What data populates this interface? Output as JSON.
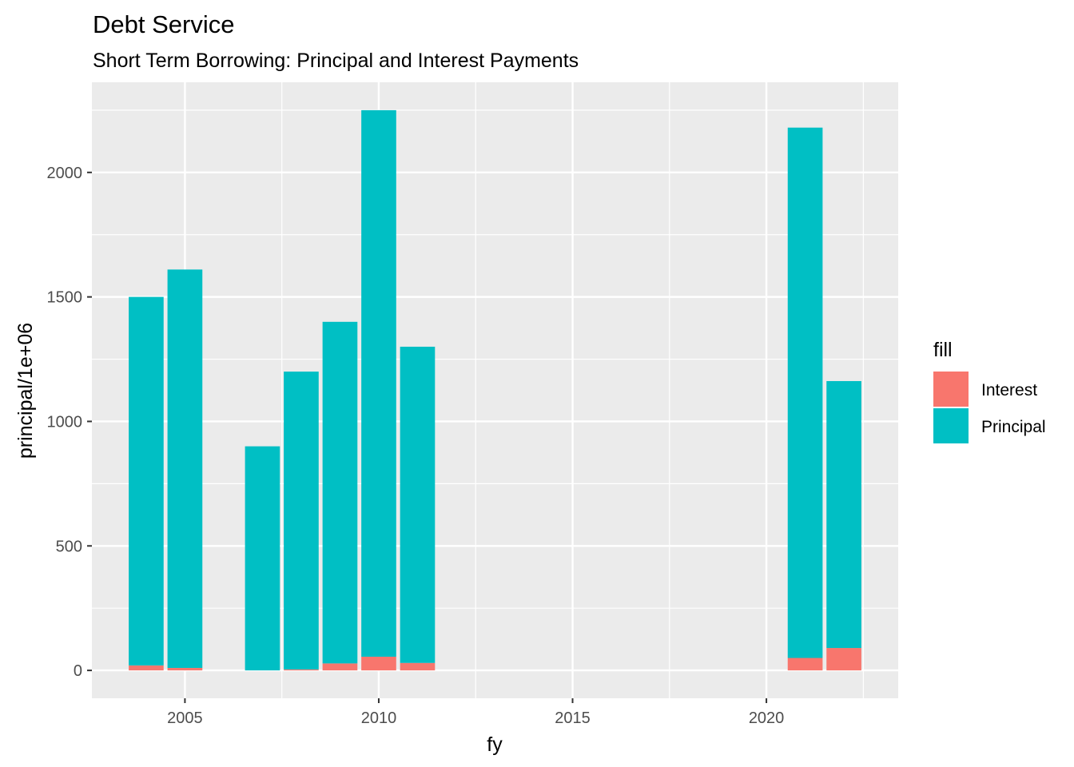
{
  "chart_data": {
    "type": "bar",
    "stacked": true,
    "title": "Debt Service",
    "subtitle": "Short Term Borrowing: Principal and Interest Payments",
    "xlabel": "fy",
    "ylabel": "principal/1e+06",
    "xlim": [
      2002.6,
      2023.4
    ],
    "ylim": [
      -112,
      2362
    ],
    "x_ticks": [
      2005,
      2010,
      2015,
      2020
    ],
    "x_tick_labels": [
      "2005",
      "2010",
      "2015",
      "2020"
    ],
    "y_ticks": [
      0,
      500,
      1000,
      1500,
      2000
    ],
    "y_tick_labels": [
      "0",
      "500",
      "1000",
      "1500",
      "2000"
    ],
    "grid": true,
    "legend": {
      "title": "fill",
      "position": "right"
    },
    "x": [
      2004,
      2005,
      2007,
      2008,
      2009,
      2010,
      2011,
      2021,
      2022
    ],
    "series": [
      {
        "name": "Interest",
        "color": "#F8766D",
        "values": [
          20,
          10,
          0,
          4,
          28,
          55,
          30,
          50,
          90
        ]
      },
      {
        "name": "Principal",
        "color": "#00BFC4",
        "values": [
          1480,
          1600,
          900,
          1196,
          1372,
          2195,
          1270,
          2130,
          1072
        ]
      }
    ]
  }
}
